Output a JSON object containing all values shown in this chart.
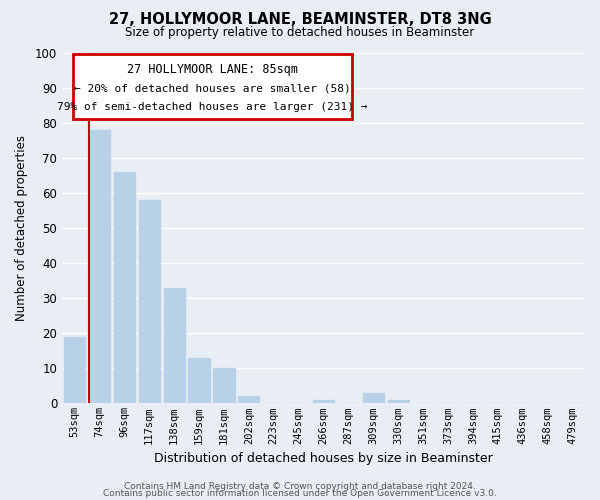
{
  "title": "27, HOLLYMOOR LANE, BEAMINSTER, DT8 3NG",
  "subtitle": "Size of property relative to detached houses in Beaminster",
  "xlabel": "Distribution of detached houses by size in Beaminster",
  "ylabel": "Number of detached properties",
  "bar_labels": [
    "53sqm",
    "74sqm",
    "96sqm",
    "117sqm",
    "138sqm",
    "159sqm",
    "181sqm",
    "202sqm",
    "223sqm",
    "245sqm",
    "266sqm",
    "287sqm",
    "309sqm",
    "330sqm",
    "351sqm",
    "373sqm",
    "394sqm",
    "415sqm",
    "436sqm",
    "458sqm",
    "479sqm"
  ],
  "bar_values": [
    19,
    78,
    66,
    58,
    33,
    13,
    10,
    2,
    0,
    0,
    1,
    0,
    3,
    1,
    0,
    0,
    0,
    0,
    0,
    0,
    0
  ],
  "bar_color": "#b8d0e8",
  "bar_edge_color": "#a0bcd8",
  "ylim": [
    0,
    100
  ],
  "yticks": [
    0,
    10,
    20,
    30,
    40,
    50,
    60,
    70,
    80,
    90,
    100
  ],
  "annotation_title": "27 HOLLYMOOR LANE: 85sqm",
  "annotation_line1": "← 20% of detached houses are smaller (58)",
  "annotation_line2": "79% of semi-detached houses are larger (231) →",
  "annotation_box_color": "#ffffff",
  "annotation_box_edge": "#cc0000",
  "red_line_color": "#cc0000",
  "footer1": "Contains HM Land Registry data © Crown copyright and database right 2024.",
  "footer2": "Contains public sector information licensed under the Open Government Licence v3.0.",
  "background_color": "#e8eef4",
  "plot_background": "#e8eef4",
  "grid_color": "#ffffff",
  "red_line_x": 1.0
}
